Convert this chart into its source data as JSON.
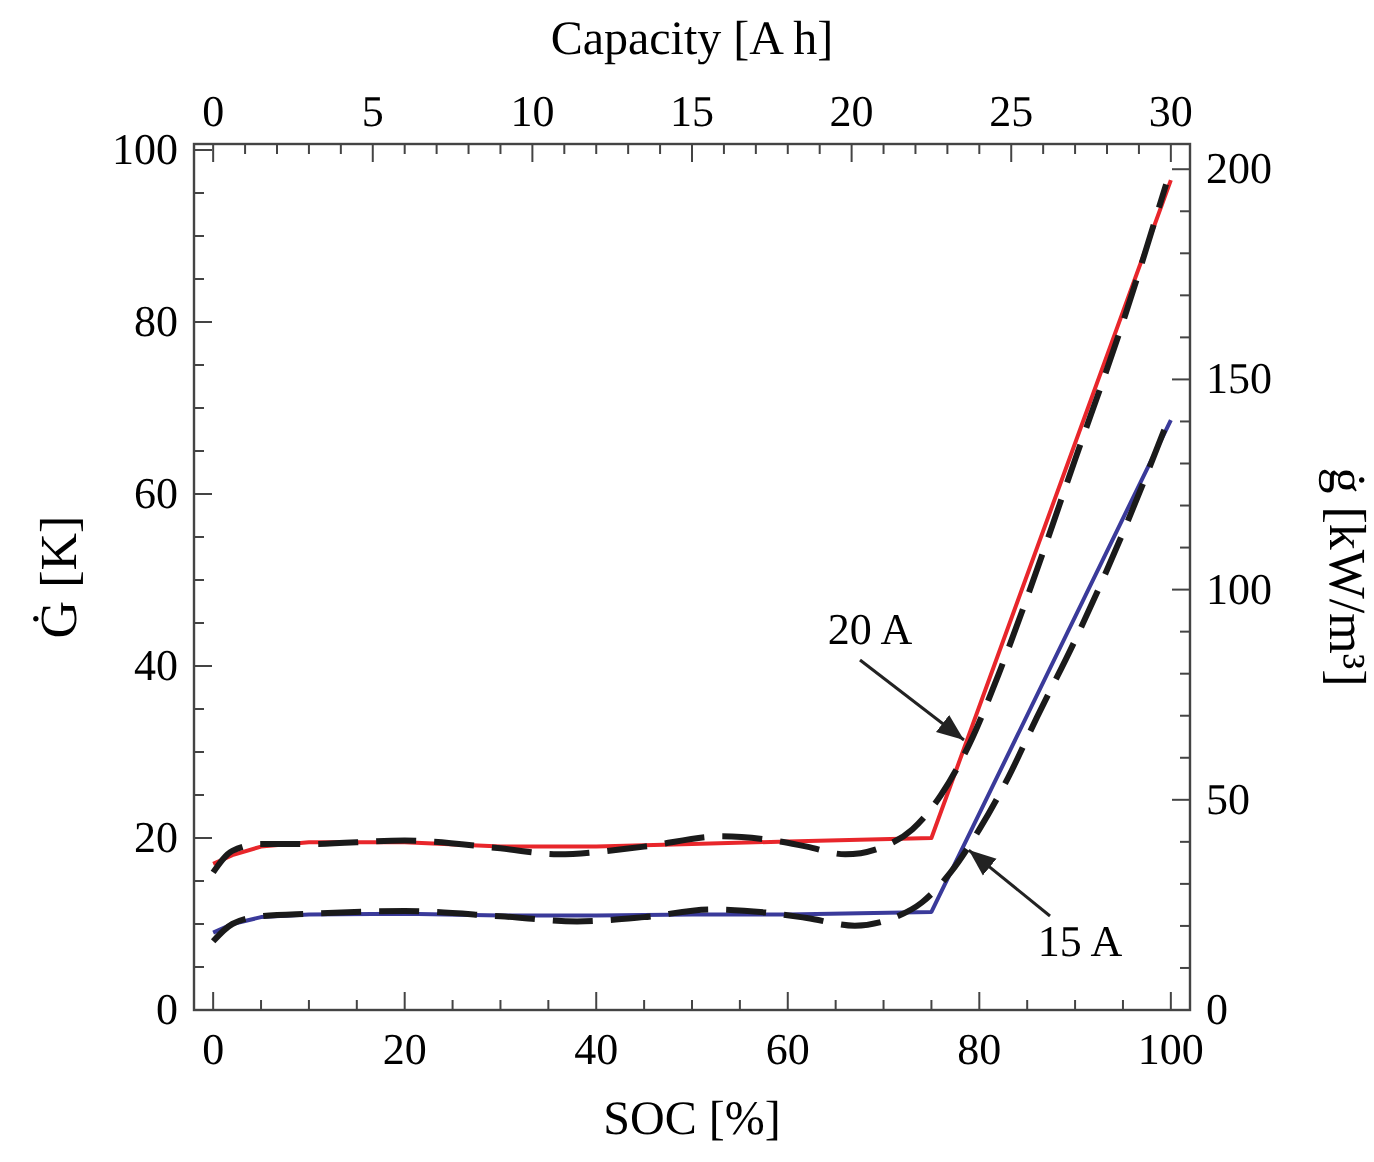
{
  "chart_data": {
    "type": "line",
    "xlabel": "SOC [%]",
    "ylabel": "Ġ [K]",
    "x2label": "Capacity [A h]",
    "y2label": "ġ [kW/m³]",
    "xlim": [
      -2,
      102
    ],
    "ylim": [
      0,
      100.7
    ],
    "x2lim": [
      -0.6,
      30.6
    ],
    "y2lim": [
      0,
      206
    ],
    "xticks": [
      0,
      {
        "value": 5,
        "label": null
      },
      {
        "value": 10,
        "label": null
      },
      {
        "value": 15,
        "label": null
      },
      20,
      {
        "value": 25,
        "label": null
      },
      {
        "value": 30,
        "label": null
      },
      {
        "value": 35,
        "label": null
      },
      40,
      {
        "value": 45,
        "label": null
      },
      {
        "value": 50,
        "label": null
      },
      {
        "value": 55,
        "label": null
      },
      60,
      {
        "value": 65,
        "label": null
      },
      {
        "value": 70,
        "label": null
      },
      {
        "value": 75,
        "label": null
      },
      80,
      {
        "value": 85,
        "label": null
      },
      {
        "value": 90,
        "label": null
      },
      {
        "value": 95,
        "label": null
      },
      100
    ],
    "yticks": [
      0,
      {
        "value": 5,
        "label": null
      },
      {
        "value": 10,
        "label": null
      },
      {
        "value": 15,
        "label": null
      },
      20,
      {
        "value": 25,
        "label": null
      },
      {
        "value": 30,
        "label": null
      },
      {
        "value": 35,
        "label": null
      },
      40,
      {
        "value": 45,
        "label": null
      },
      {
        "value": 50,
        "label": null
      },
      {
        "value": 55,
        "label": null
      },
      60,
      {
        "value": 65,
        "label": null
      },
      {
        "value": 70,
        "label": null
      },
      {
        "value": 75,
        "label": null
      },
      80,
      {
        "value": 85,
        "label": null
      },
      {
        "value": 90,
        "label": null
      },
      {
        "value": 95,
        "label": null
      },
      100
    ],
    "x2ticks": [
      0,
      {
        "value": 1,
        "label": null
      },
      {
        "value": 2,
        "label": null
      },
      {
        "value": 3,
        "label": null
      },
      {
        "value": 4,
        "label": null
      },
      5,
      {
        "value": 6,
        "label": null
      },
      {
        "value": 7,
        "label": null
      },
      {
        "value": 8,
        "label": null
      },
      {
        "value": 9,
        "label": null
      },
      10,
      {
        "value": 11,
        "label": null
      },
      {
        "value": 12,
        "label": null
      },
      {
        "value": 13,
        "label": null
      },
      {
        "value": 14,
        "label": null
      },
      15,
      {
        "value": 16,
        "label": null
      },
      {
        "value": 17,
        "label": null
      },
      {
        "value": 18,
        "label": null
      },
      {
        "value": 19,
        "label": null
      },
      20,
      {
        "value": 21,
        "label": null
      },
      {
        "value": 22,
        "label": null
      },
      {
        "value": 23,
        "label": null
      },
      {
        "value": 24,
        "label": null
      },
      25,
      {
        "value": 26,
        "label": null
      },
      {
        "value": 27,
        "label": null
      },
      {
        "value": 28,
        "label": null
      },
      {
        "value": 29,
        "label": null
      },
      30
    ],
    "y2ticks": [
      0,
      {
        "value": 10,
        "label": null
      },
      {
        "value": 20,
        "label": null
      },
      {
        "value": 30,
        "label": null
      },
      {
        "value": 40,
        "label": null
      },
      50,
      {
        "value": 60,
        "label": null
      },
      {
        "value": 70,
        "label": null
      },
      {
        "value": 80,
        "label": null
      },
      {
        "value": 90,
        "label": null
      },
      100,
      {
        "value": 110,
        "label": null
      },
      {
        "value": 120,
        "label": null
      },
      {
        "value": 130,
        "label": null
      },
      {
        "value": 140,
        "label": null
      },
      150,
      {
        "value": 160,
        "label": null
      },
      {
        "value": 170,
        "label": null
      },
      {
        "value": 180,
        "label": null
      },
      {
        "value": 190,
        "label": null
      },
      200
    ],
    "series": [
      {
        "color": "#e8262b",
        "line_style": "solid",
        "x": [
          0,
          2,
          5,
          10,
          20,
          30,
          40,
          50,
          60,
          75,
          100
        ],
        "values": [
          17,
          18,
          19,
          19.5,
          19.5,
          19,
          19,
          19.3,
          19.6,
          20,
          96.5
        ]
      },
      {
        "color": "#3a3a9a",
        "line_style": "solid",
        "x": [
          0,
          2,
          5,
          10,
          20,
          30,
          40,
          50,
          60,
          75,
          100
        ],
        "values": [
          9,
          10,
          10.8,
          11.1,
          11.2,
          11,
          11,
          11.1,
          11.1,
          11.4,
          68.6
        ]
      },
      {
        "color": "#1a1a1a",
        "line_style": "dashed",
        "x": [
          0,
          2,
          5,
          10,
          20,
          30,
          36,
          45,
          53,
          58,
          62,
          66,
          70,
          73,
          76,
          79,
          82,
          85,
          90,
          95,
          99.5
        ],
        "values": [
          16,
          18.5,
          19.3,
          19.3,
          19.7,
          18.8,
          18.1,
          19,
          20.2,
          19.8,
          19,
          18.1,
          19,
          21,
          25,
          31,
          39,
          48,
          64,
          80,
          96
        ]
      },
      {
        "color": "#1a1a1a",
        "line_style": "dashed",
        "x": [
          0,
          2,
          5,
          10,
          20,
          30,
          38,
          45,
          52,
          58,
          62,
          67,
          71,
          74,
          77,
          80,
          83,
          86,
          90,
          95,
          99.5
        ],
        "values": [
          8,
          10,
          10.9,
          11.2,
          11.5,
          10.9,
          10.3,
          10.8,
          11.7,
          11.3,
          10.7,
          9.8,
          10.7,
          12.5,
          16,
          21,
          27,
          34,
          43,
          55.5,
          68
        ]
      }
    ],
    "annotations": [
      {
        "text": "20 A",
        "x": 78.4,
        "y": 31.4
      },
      {
        "text": "15 A",
        "x": 78.9,
        "y": 18.6
      }
    ]
  }
}
